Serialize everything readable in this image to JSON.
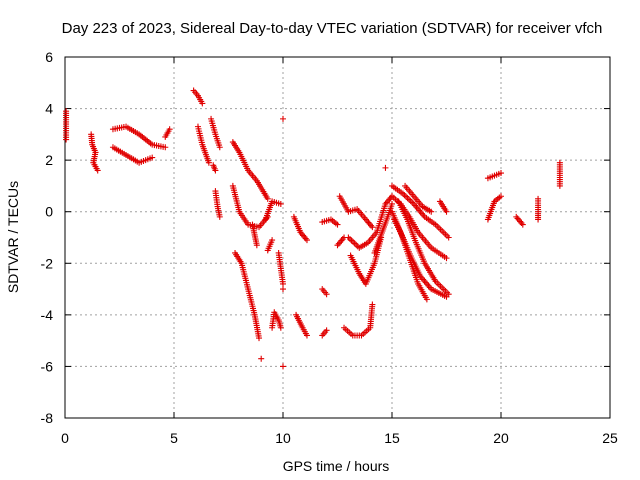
{
  "chart_data": {
    "type": "scatter",
    "title": "Day 223 of 2023, Sidereal Day-to-day VTEC variation (SDTVAR) for receiver vfch",
    "xlabel": "GPS time / hours",
    "ylabel": "SDTVAR / TECUs",
    "xlim": [
      0,
      25
    ],
    "ylim": [
      -8,
      6
    ],
    "x_ticks": [
      0,
      5,
      10,
      15,
      20,
      25
    ],
    "x_tick_labels": [
      "0",
      "5",
      "10",
      "15",
      "20",
      "25"
    ],
    "y_ticks": [
      -8,
      -6,
      -4,
      -2,
      0,
      2,
      4,
      6
    ],
    "y_tick_labels": [
      "-8",
      "-6",
      "-4",
      "-2",
      "0",
      "2",
      "4",
      "6"
    ],
    "grid": true,
    "marker": "plus",
    "color": "#e00000",
    "segments": [
      [
        [
          0.05,
          3.9
        ],
        [
          0.05,
          3.4
        ],
        [
          0.05,
          2.8
        ]
      ],
      [
        [
          1.2,
          3.0
        ],
        [
          1.25,
          2.6
        ],
        [
          1.4,
          2.3
        ],
        [
          1.3,
          1.9
        ],
        [
          1.5,
          1.6
        ]
      ],
      [
        [
          2.2,
          3.2
        ],
        [
          2.8,
          3.3
        ],
        [
          3.4,
          3.0
        ],
        [
          4.0,
          2.6
        ],
        [
          4.6,
          2.5
        ]
      ],
      [
        [
          2.2,
          2.5
        ],
        [
          2.8,
          2.2
        ],
        [
          3.4,
          1.9
        ],
        [
          4.0,
          2.1
        ]
      ],
      [
        [
          4.6,
          2.9
        ],
        [
          4.8,
          3.2
        ]
      ],
      [
        [
          5.9,
          4.7
        ],
        [
          6.1,
          4.5
        ],
        [
          6.3,
          4.2
        ]
      ],
      [
        [
          6.1,
          3.3
        ],
        [
          6.3,
          2.6
        ],
        [
          6.6,
          1.9
        ]
      ],
      [
        [
          6.7,
          3.6
        ],
        [
          6.9,
          3.0
        ],
        [
          7.1,
          2.5
        ]
      ],
      [
        [
          6.8,
          1.8
        ],
        [
          6.9,
          1.6
        ]
      ],
      [
        [
          6.9,
          0.8
        ],
        [
          7.0,
          0.2
        ],
        [
          7.1,
          -0.2
        ]
      ],
      [
        [
          7.7,
          2.7
        ],
        [
          8.0,
          2.3
        ],
        [
          8.4,
          1.6
        ],
        [
          8.8,
          1.2
        ],
        [
          9.3,
          0.5
        ]
      ],
      [
        [
          7.7,
          1.0
        ],
        [
          8.0,
          0.0
        ],
        [
          8.4,
          -0.5
        ],
        [
          8.9,
          -0.6
        ],
        [
          9.3,
          -0.2
        ]
      ],
      [
        [
          7.8,
          -1.6
        ],
        [
          8.1,
          -2.0
        ],
        [
          8.4,
          -3.0
        ],
        [
          8.7,
          -4.0
        ],
        [
          8.9,
          -4.9
        ]
      ],
      [
        [
          8.6,
          -0.5
        ],
        [
          8.8,
          -1.3
        ]
      ],
      [
        [
          9.0,
          -5.7
        ]
      ],
      [
        [
          9.2,
          -0.3
        ],
        [
          9.5,
          0.4
        ],
        [
          9.9,
          0.3
        ]
      ],
      [
        [
          9.3,
          -1.5
        ],
        [
          9.5,
          -1.1
        ]
      ],
      [
        [
          9.5,
          -4.5
        ],
        [
          9.6,
          -3.9
        ],
        [
          9.8,
          -4.2
        ],
        [
          9.9,
          -4.5
        ]
      ],
      [
        [
          9.8,
          -1.6
        ],
        [
          9.9,
          -2.2
        ],
        [
          10.0,
          -2.8
        ]
      ],
      [
        [
          10.0,
          3.6
        ]
      ],
      [
        [
          10.0,
          -3.0
        ]
      ],
      [
        [
          10.0,
          -6.0
        ]
      ],
      [
        [
          10.5,
          -0.2
        ],
        [
          10.8,
          -0.8
        ],
        [
          11.1,
          -1.1
        ]
      ],
      [
        [
          10.6,
          -4.0
        ],
        [
          10.9,
          -4.5
        ],
        [
          11.1,
          -4.8
        ]
      ],
      [
        [
          11.8,
          -0.4
        ],
        [
          12.2,
          -0.3
        ],
        [
          12.5,
          -0.5
        ]
      ],
      [
        [
          11.8,
          -3.0
        ],
        [
          12.0,
          -3.2
        ]
      ],
      [
        [
          11.8,
          -4.8
        ],
        [
          12.0,
          -4.6
        ]
      ],
      [
        [
          12.5,
          -1.3
        ],
        [
          12.8,
          -1.0
        ]
      ],
      [
        [
          12.6,
          0.6
        ],
        [
          13.0,
          0.0
        ],
        [
          13.4,
          0.1
        ],
        [
          13.8,
          -0.3
        ],
        [
          14.1,
          -0.6
        ]
      ],
      [
        [
          13.0,
          -1.0
        ],
        [
          13.5,
          -1.4
        ],
        [
          13.9,
          -1.2
        ],
        [
          14.3,
          -0.8
        ],
        [
          14.7,
          0.3
        ],
        [
          15.0,
          0.6
        ]
      ],
      [
        [
          12.8,
          -4.5
        ],
        [
          13.2,
          -4.8
        ],
        [
          13.6,
          -4.8
        ],
        [
          14.0,
          -4.5
        ],
        [
          14.1,
          -3.6
        ]
      ],
      [
        [
          13.1,
          -1.7
        ],
        [
          13.5,
          -2.4
        ],
        [
          13.8,
          -2.8
        ],
        [
          14.2,
          -2.0
        ],
        [
          14.5,
          -1.0
        ]
      ],
      [
        [
          14.2,
          -1.6
        ],
        [
          14.5,
          -0.9
        ],
        [
          14.8,
          -0.2
        ],
        [
          15.0,
          0.3
        ]
      ],
      [
        [
          14.7,
          1.7
        ]
      ],
      [
        [
          15.0,
          1.0
        ],
        [
          15.5,
          0.7
        ],
        [
          16.0,
          0.3
        ],
        [
          16.5,
          -0.2
        ],
        [
          17.0,
          -0.5
        ],
        [
          17.6,
          -1.0
        ]
      ],
      [
        [
          15.0,
          0.6
        ],
        [
          15.4,
          0.3
        ],
        [
          15.8,
          -0.2
        ],
        [
          16.2,
          -0.8
        ],
        [
          16.8,
          -1.4
        ],
        [
          17.5,
          -1.8
        ]
      ],
      [
        [
          15.0,
          0.0
        ],
        [
          15.4,
          -0.8
        ],
        [
          15.8,
          -1.8
        ],
        [
          16.2,
          -2.8
        ],
        [
          16.6,
          -3.4
        ]
      ],
      [
        [
          15.1,
          -0.3
        ],
        [
          15.5,
          -1.0
        ],
        [
          15.9,
          -1.8
        ],
        [
          16.3,
          -2.5
        ],
        [
          16.8,
          -3.0
        ],
        [
          17.5,
          -3.3
        ]
      ],
      [
        [
          15.3,
          0.4
        ],
        [
          15.7,
          -0.3
        ],
        [
          16.1,
          -1.2
        ],
        [
          16.5,
          -2.0
        ],
        [
          17.0,
          -2.7
        ],
        [
          17.6,
          -3.2
        ]
      ],
      [
        [
          15.6,
          1.0
        ],
        [
          16.0,
          0.6
        ],
        [
          16.4,
          0.2
        ],
        [
          16.8,
          0.0
        ]
      ],
      [
        [
          17.2,
          0.4
        ],
        [
          17.5,
          0.0
        ]
      ],
      [
        [
          19.4,
          1.3
        ],
        [
          19.7,
          1.4
        ],
        [
          20.0,
          1.5
        ]
      ],
      [
        [
          19.4,
          -0.3
        ],
        [
          19.7,
          0.4
        ],
        [
          20.0,
          0.6
        ]
      ],
      [
        [
          20.7,
          -0.2
        ],
        [
          21.0,
          -0.5
        ]
      ],
      [
        [
          21.7,
          0.5
        ],
        [
          21.7,
          0.0
        ],
        [
          21.7,
          -0.3
        ]
      ],
      [
        [
          22.7,
          1.9
        ],
        [
          22.7,
          1.0
        ]
      ]
    ]
  }
}
